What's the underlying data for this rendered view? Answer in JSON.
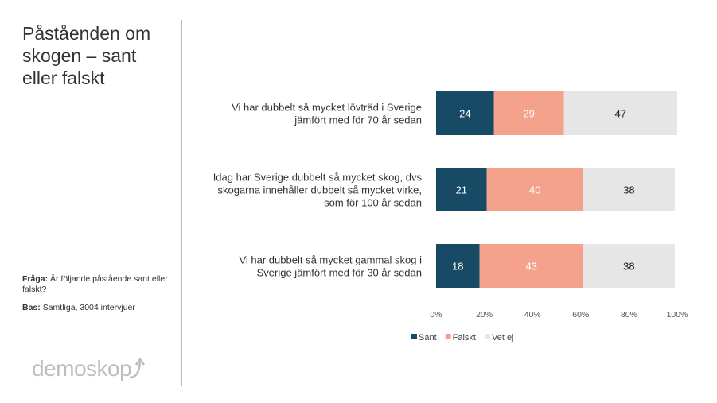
{
  "slide": {
    "title": "Påståenden om skogen – sant eller falskt",
    "question_label": "Fråga:",
    "question": "Är följande påstående sant eller falskt?",
    "base_label": "Bas:",
    "base": "Samtliga, 3004 intervjuer",
    "logo": "demoskop"
  },
  "chart_data": {
    "type": "bar",
    "orientation": "horizontal",
    "stacked": true,
    "categories": [
      [
        "Vi har dubbelt så mycket lövträd i Sverige",
        "jämfört med för 70 år sedan"
      ],
      [
        "Idag har Sverige dubbelt så mycket skog, dvs",
        "skogarna innehåller dubbelt så mycket virke,",
        "som för 100 år sedan"
      ],
      [
        "Vi har dubbelt så mycket gammal skog i",
        "Sverige jämfört med för 30 år sedan"
      ]
    ],
    "series": [
      {
        "name": "Sant",
        "color": "#174a64",
        "label_color": "#ffffff",
        "values": [
          24,
          21,
          18
        ]
      },
      {
        "name": "Falskt",
        "color": "#f4a28b",
        "label_color": "#ffffff",
        "values": [
          29,
          40,
          43
        ]
      },
      {
        "name": "Vet ej",
        "color": "#e6e6e6",
        "label_color": "#222222",
        "values": [
          47,
          38,
          38
        ]
      }
    ],
    "xlim": [
      0,
      100
    ],
    "xticks": [
      "0%",
      "20%",
      "40%",
      "60%",
      "80%",
      "100%"
    ],
    "legend": "bottom",
    "grid": false
  }
}
